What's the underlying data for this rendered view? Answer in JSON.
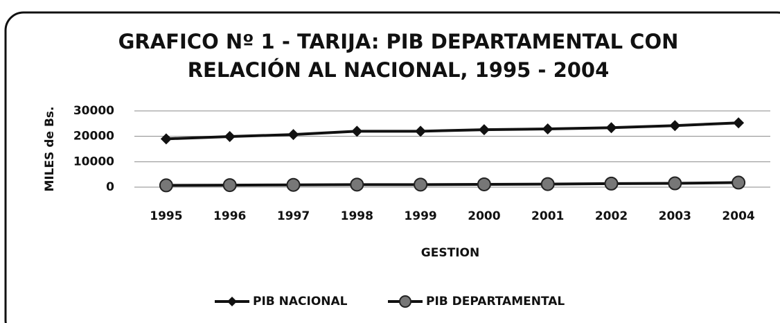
{
  "chart_data": {
    "type": "line",
    "title": "GRAFICO Nº 1 - TARIJA: PIB DEPARTAMENTAL CON RELACIÓN AL NACIONAL, 1995 - 2004",
    "title_lines": [
      "GRAFICO Nº 1 - TARIJA: PIB DEPARTAMENTAL CON",
      "RELACIÓN AL NACIONAL, 1995 - 2004"
    ],
    "x_label": "GESTION",
    "y_label": "MILES de Bs.",
    "categories": [
      "1995",
      "1996",
      "1997",
      "1998",
      "1999",
      "2000",
      "2001",
      "2002",
      "2003",
      "2004"
    ],
    "series": [
      {
        "name": "PIB NACIONAL",
        "color": "#111111",
        "marker": "diamond",
        "values": [
          19000,
          19900,
          20700,
          22000,
          22000,
          22600,
          22900,
          23400,
          24200,
          25300
        ]
      },
      {
        "name": "PIB DEPARTAMENTAL",
        "color": "#111111",
        "marker": "circle",
        "values": [
          700,
          800,
          900,
          1000,
          1000,
          1100,
          1200,
          1400,
          1500,
          1800
        ]
      }
    ],
    "ylim": [
      0,
      30000
    ],
    "yticks": [
      0,
      10000,
      20000,
      30000
    ],
    "grid": true,
    "legend": "bottom"
  }
}
